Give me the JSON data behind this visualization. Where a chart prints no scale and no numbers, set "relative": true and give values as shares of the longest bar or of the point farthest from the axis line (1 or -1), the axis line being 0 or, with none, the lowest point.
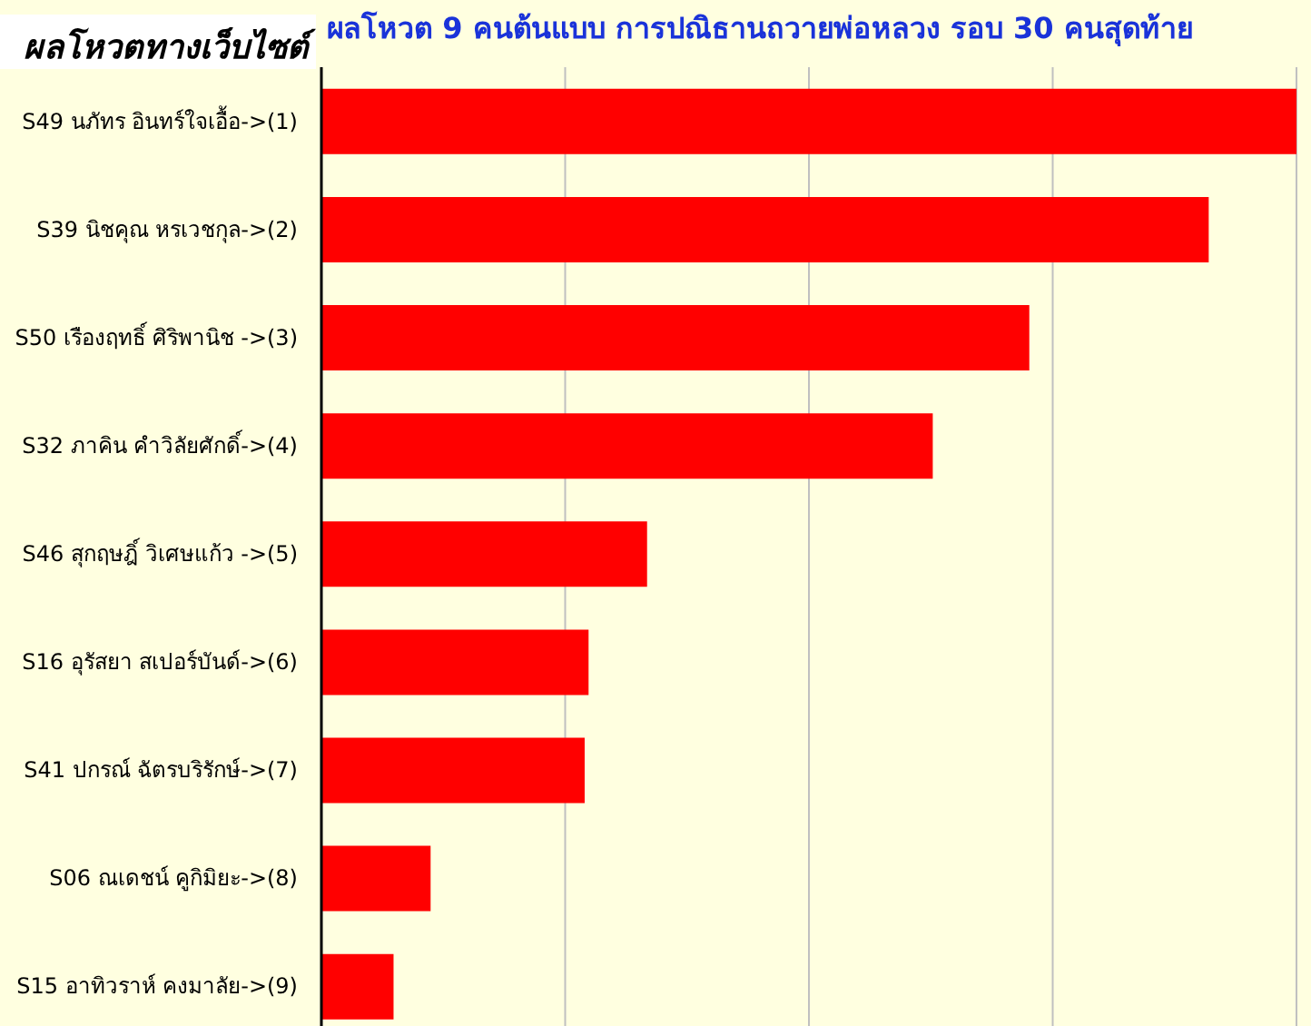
{
  "chart_data": {
    "type": "bar",
    "orientation": "horizontal",
    "title": "ผลโหวต 9 คนต้นแบบ การปณิธานถวายพ่อหลวง รอบ 30 คนสุดท้าย",
    "subtitle": "ผลโหวตทางเว็บไซต์",
    "categories": [
      "S49 นภัทร อินทร์ใจเอื้อ->(1)",
      "S39 นิชคุณ หรเวชกุล->(2)",
      "S50 เรืองฤทธิ์ ศิริพานิช ->(3)",
      "S32 ภาคิน คำวิลัยศักดิ์->(4)",
      "S46 สุกฤษฎิ์ วิเศษแก้ว ->(5)",
      "S16 อุรัสยา สเปอร์บันด์->(6)",
      "S41 ปกรณ์ ฉัตรบริรักษ์->(7)",
      "S06 ณเดชน์ คูกิมิยะ->(8)",
      "S15 อาทิวราห์ คงมาลัย->(9)"
    ],
    "values": [
      1,
      0.91,
      0.726,
      0.627,
      0.334,
      0.274,
      0.27,
      0.112,
      0.074
    ],
    "color": "#ff0000",
    "relative": true,
    "grid": "x"
  }
}
